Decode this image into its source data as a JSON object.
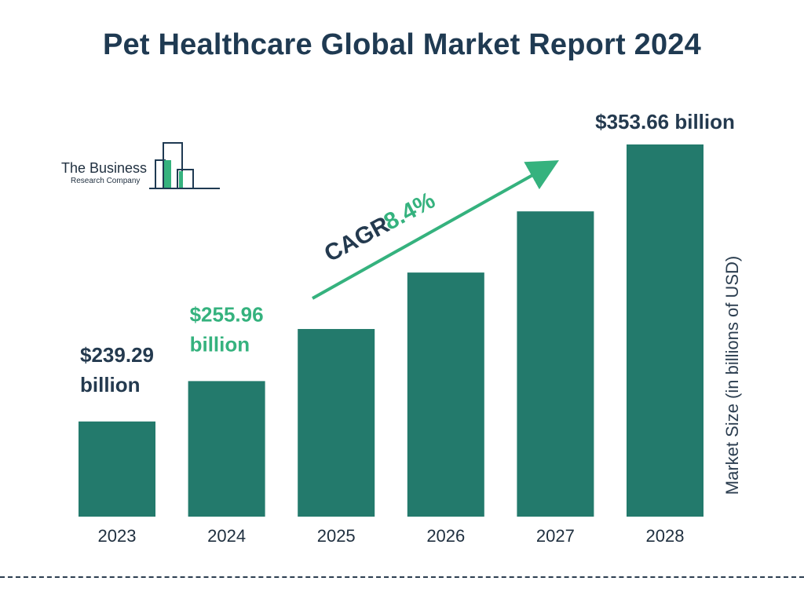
{
  "title": "Pet Healthcare Global Market Report 2024",
  "logo": {
    "line1": "The Business",
    "line2": "Research Company"
  },
  "colors": {
    "bar": "#237a6c",
    "title": "#1f3a52",
    "accent": "#35b27e",
    "dark_label": "#243a4f"
  },
  "chart_data": {
    "type": "bar",
    "categories": [
      "2023",
      "2024",
      "2025",
      "2026",
      "2027",
      "2028"
    ],
    "values": [
      239.29,
      255.96,
      277.47,
      300.78,
      326.04,
      353.66
    ],
    "ylabel": "Market Size (in billions of USD)",
    "ylim": [
      200,
      360
    ],
    "grid": false,
    "data_labels": [
      {
        "index": 0,
        "lines": [
          "$239.29",
          "billion"
        ],
        "color": "#243a4f"
      },
      {
        "index": 1,
        "lines": [
          "$255.96",
          "billion"
        ],
        "color": "#35b27e"
      },
      {
        "index": 5,
        "lines": [
          "$353.66 billion"
        ],
        "color": "#243a4f"
      }
    ],
    "annotation": {
      "label": "CAGR",
      "value": "8.4%"
    }
  }
}
